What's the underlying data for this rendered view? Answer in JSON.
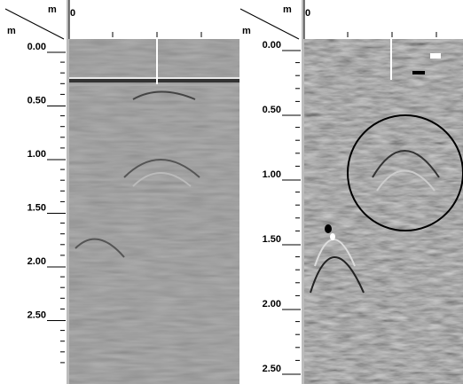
{
  "panels": [
    {
      "x_unit": "m",
      "depth_unit": "m",
      "origin": "0",
      "depth_labels": [
        "0.00",
        "0.50",
        "1.00",
        "1.50",
        "2.00",
        "2.50"
      ]
    },
    {
      "x_unit": "m",
      "depth_unit": "m",
      "origin": "0",
      "depth_labels": [
        "0.00",
        "0.50",
        "1.00",
        "1.50",
        "2.00",
        "2.50"
      ]
    }
  ]
}
